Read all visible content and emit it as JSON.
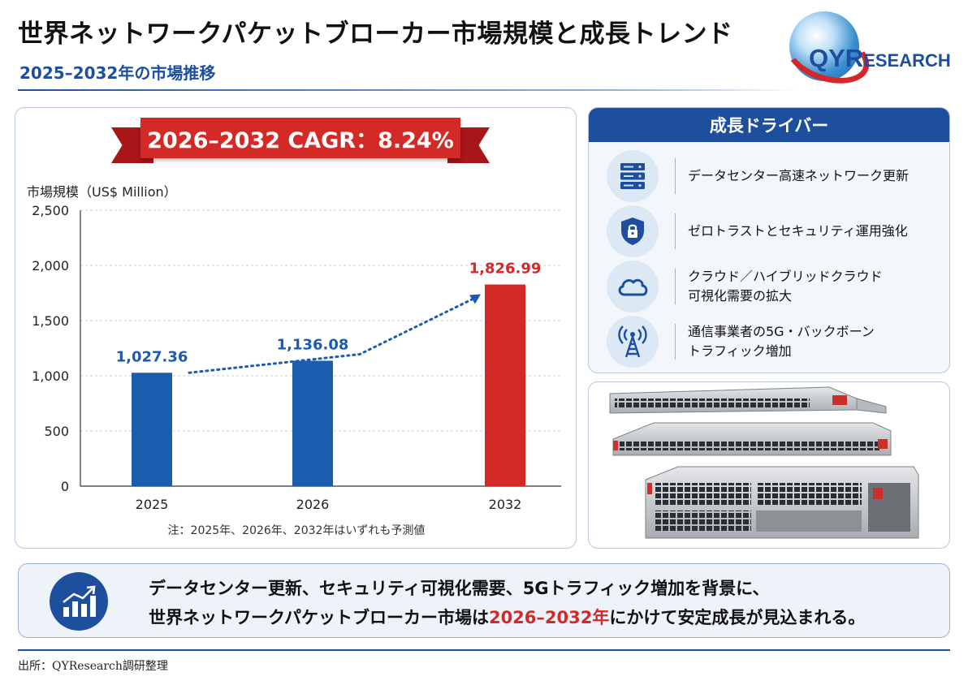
{
  "header": {
    "title": "世界ネットワークパケットブローカー市場規模と成長トレンド",
    "subtitle": "2025–2032年の市場推移"
  },
  "logo": {
    "text_big": "QYR",
    "text_small": "ESEARCH",
    "colors": {
      "blue": "#1d4f9e",
      "red": "#d6262a"
    }
  },
  "chart_data": {
    "type": "bar",
    "banner": "2026–2032 CAGR：8.24%",
    "ylabel": "市場規模（US$ Million）",
    "categories": [
      "2025",
      "2026",
      "2032"
    ],
    "values": [
      1027.36,
      1136.08,
      1826.99
    ],
    "data_labels": [
      "1,027.36",
      "1,136.08",
      "1,826.99"
    ],
    "bar_colors": [
      "#1c5cae",
      "#1c5cae",
      "#d32a28"
    ],
    "label_colors": [
      "#1c5cae",
      "#1c5cae",
      "#d32a28"
    ],
    "ylim": [
      0,
      2500
    ],
    "yticks": [
      0,
      500,
      1000,
      1500,
      2000,
      2500
    ],
    "ytick_labels": [
      "0",
      "500",
      "1,000",
      "1,500",
      "2,000",
      "2,500"
    ],
    "grid": true,
    "trend_arrow": true,
    "footnote": "注：2025年、2026年、2032年はいずれも予測値"
  },
  "drivers": {
    "title": "成長ドライバー",
    "items": [
      {
        "icon": "server-rack-icon",
        "lines": [
          "データセンター高速ネットワーク更新"
        ]
      },
      {
        "icon": "shield-lock-icon",
        "lines": [
          "ゼロトラストとセキュリティ運用強化"
        ]
      },
      {
        "icon": "cloud-icon",
        "lines": [
          "クラウド／ハイブリッドクラウド",
          "可視化需要の拡大"
        ]
      },
      {
        "icon": "antenna-tower-icon",
        "lines": [
          "通信事業者の5G・バックボーン",
          "トラフィック増加"
        ]
      }
    ]
  },
  "summary": {
    "line1": "データセンター更新、セキュリティ可視化需要、5Gトラフィック増加を背景に、",
    "line2_pre": "世界ネットワークパケットブローカー市場は",
    "line2_highlight": "2026–2032年",
    "line2_post": "にかけて安定成長が見込まれる。"
  },
  "source": "出所：QYResearch調研整理"
}
